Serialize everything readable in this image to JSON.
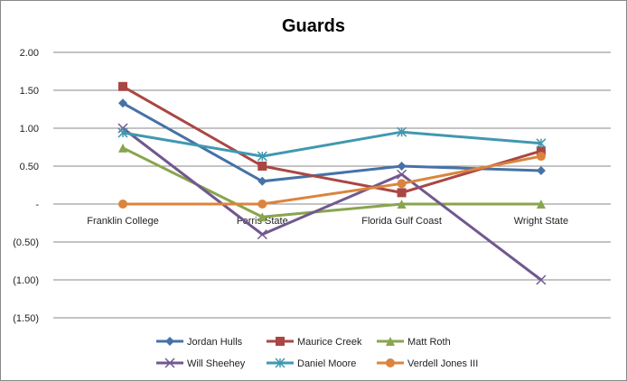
{
  "chart_data": {
    "type": "line",
    "title": "Guards",
    "xlabel": "",
    "ylabel": "",
    "ylim": [
      -1.5,
      2.0
    ],
    "yticks": [
      2.0,
      1.5,
      1.0,
      0.5,
      0,
      -0.5,
      -1.0,
      -1.5
    ],
    "ytick_labels": [
      "2.00",
      "1.50",
      "1.00",
      "0.50",
      "-",
      "(0.50)",
      "(1.00)",
      "(1.50)"
    ],
    "categories": [
      "Franklin College",
      "Ferris State",
      "Florida Gulf Coast",
      "Wright State"
    ],
    "grid": true,
    "legend": "bottom",
    "series": [
      {
        "name": "Jordan Hulls",
        "color": "#4572A7",
        "marker": "diamond",
        "values": [
          1.33,
          0.3,
          0.5,
          0.44
        ]
      },
      {
        "name": "Maurice Creek",
        "color": "#AA4643",
        "marker": "square",
        "values": [
          1.55,
          0.5,
          0.15,
          0.7
        ]
      },
      {
        "name": "Matt Roth",
        "color": "#89A54E",
        "marker": "triangle",
        "values": [
          0.74,
          -0.17,
          0,
          0
        ]
      },
      {
        "name": "Will Sheehey",
        "color": "#71588F",
        "marker": "x",
        "values": [
          1.0,
          -0.4,
          0.39,
          -1.0
        ]
      },
      {
        "name": "Daniel Moore",
        "color": "#4198AF",
        "marker": "star",
        "values": [
          0.94,
          0.63,
          0.95,
          0.8
        ]
      },
      {
        "name": "Verdell Jones III",
        "color": "#DB843D",
        "marker": "circle",
        "values": [
          0,
          0,
          0.27,
          0.63
        ]
      }
    ]
  }
}
